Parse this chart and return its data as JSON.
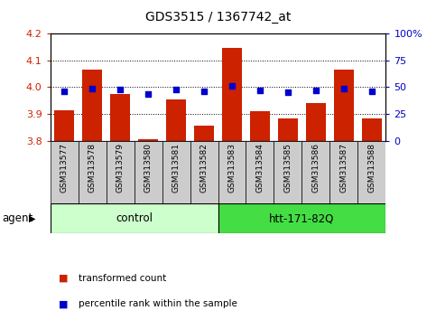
{
  "title": "GDS3515 / 1367742_at",
  "samples": [
    "GSM313577",
    "GSM313578",
    "GSM313579",
    "GSM313580",
    "GSM313581",
    "GSM313582",
    "GSM313583",
    "GSM313584",
    "GSM313585",
    "GSM313586",
    "GSM313587",
    "GSM313588"
  ],
  "bar_values": [
    3.915,
    4.065,
    3.975,
    3.805,
    3.955,
    3.855,
    4.148,
    3.91,
    3.885,
    3.94,
    4.065,
    3.885
  ],
  "percentile_values": [
    46,
    49,
    48,
    44,
    48,
    46,
    51,
    47,
    45,
    47,
    49,
    46
  ],
  "ylim_left": [
    3.8,
    4.2
  ],
  "ylim_right": [
    0,
    100
  ],
  "yticks_left": [
    3.8,
    3.9,
    4.0,
    4.1,
    4.2
  ],
  "yticks_right": [
    0,
    25,
    50,
    75,
    100
  ],
  "ytick_labels_right": [
    "0",
    "25",
    "50",
    "75",
    "100%"
  ],
  "bar_color": "#cc2200",
  "dot_color": "#0000cc",
  "grid_color": "#000000",
  "bar_bottom": 3.8,
  "control_label": "control",
  "treatment_label": "htt-171-82Q",
  "agent_label": "agent",
  "legend_bar_label": "transformed count",
  "legend_dot_label": "percentile rank within the sample",
  "control_color": "#ccffcc",
  "treatment_color": "#44dd44",
  "tick_label_bg": "#cccccc",
  "bar_width": 0.7,
  "figsize": [
    4.83,
    3.54
  ],
  "dpi": 100
}
